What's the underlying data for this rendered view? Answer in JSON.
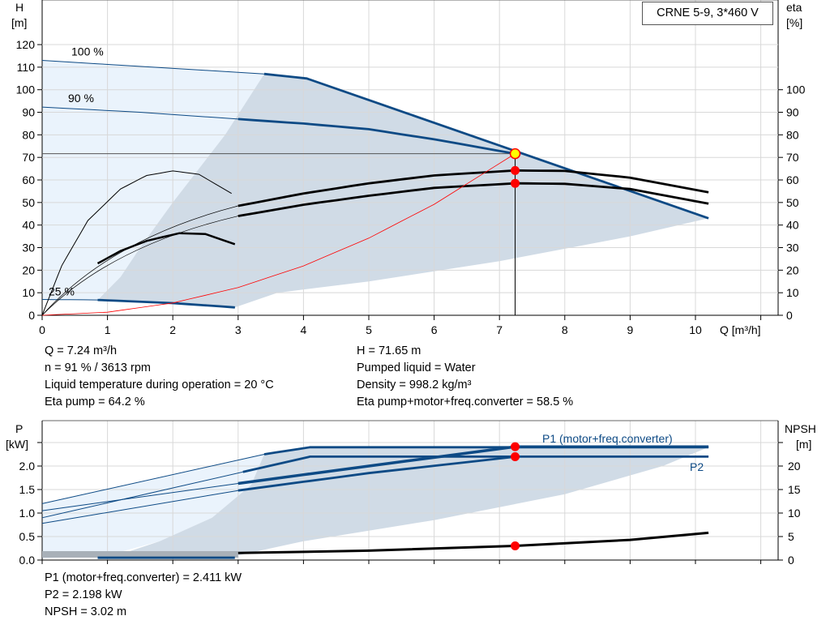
{
  "chart_data": [
    {
      "type": "line",
      "title": "CRNE 5-9, 3*460 V",
      "xlabel": "Q [m³/h]",
      "ylabel": "H [m]",
      "y2label": "eta [%]",
      "xlim": [
        0,
        11
      ],
      "ylim": [
        0,
        140
      ],
      "y2lim": [
        0,
        140
      ],
      "xticks": [
        0,
        1,
        2,
        3,
        4,
        5,
        6,
        7,
        8,
        9,
        10
      ],
      "yticks": [
        0,
        10,
        20,
        30,
        40,
        50,
        60,
        70,
        80,
        90,
        100,
        110,
        120
      ],
      "y2ticks": [
        0,
        10,
        20,
        30,
        40,
        50,
        60,
        70,
        80,
        90,
        100
      ],
      "y_axis_title": "H",
      "y_axis_unit": "[m]",
      "y2_axis_title": "eta",
      "y2_axis_unit": "[%]",
      "grid": true,
      "regions": {
        "light": [
          [
            0,
            113
          ],
          [
            3.4,
            107
          ],
          [
            2.8,
            80
          ],
          [
            2,
            50
          ],
          [
            1.5,
            30
          ],
          [
            1.2,
            17
          ],
          [
            0.85,
            7
          ],
          [
            0,
            7
          ]
        ],
        "dark": [
          [
            3.4,
            107
          ],
          [
            4.05,
            105
          ],
          [
            10.2,
            43
          ],
          [
            9,
            35
          ],
          [
            7,
            24
          ],
          [
            5,
            15
          ],
          [
            3.6,
            10
          ],
          [
            2.95,
            3.5
          ],
          [
            1.7,
            5.7
          ],
          [
            0.85,
            6.8
          ],
          [
            1.2,
            17
          ],
          [
            1.5,
            30
          ],
          [
            2,
            50
          ],
          [
            2.8,
            80
          ]
        ]
      },
      "series": [
        {
          "label": "100 %",
          "role": "head-max",
          "color": "#0d4a85",
          "points": [
            [
              0,
              113
            ],
            [
              3.4,
              107
            ],
            [
              4.05,
              105
            ],
            [
              10.2,
              43
            ]
          ]
        },
        {
          "label": "90 %",
          "role": "head",
          "color": "#0d4a85",
          "points": [
            [
              0,
              92.3
            ],
            [
              1.5,
              90
            ],
            [
              3,
              87
            ],
            [
              4,
              85
            ],
            [
              5,
              82.5
            ],
            [
              6,
              78
            ],
            [
              7.24,
              71.65
            ]
          ]
        },
        {
          "label": "25 %",
          "role": "head-min",
          "color": "#0d4a85",
          "points": [
            [
              0,
              7
            ],
            [
              0.85,
              6.8
            ],
            [
              2,
              5.4
            ],
            [
              2.95,
              3.5
            ]
          ]
        },
        {
          "role": "eta-pump",
          "color": "#000",
          "points": [
            [
              3,
              48.5
            ],
            [
              4,
              54
            ],
            [
              5,
              58.5
            ],
            [
              6,
              62
            ],
            [
              7.24,
              64.2
            ],
            [
              8,
              64
            ],
            [
              9,
              61
            ],
            [
              10.2,
              54.5
            ]
          ]
        },
        {
          "role": "eta-total",
          "color": "#000",
          "points": [
            [
              3,
              44
            ],
            [
              4,
              49
            ],
            [
              5,
              53
            ],
            [
              6,
              56.5
            ],
            [
              7.24,
              58.5
            ],
            [
              8,
              58.3
            ],
            [
              9,
              56
            ],
            [
              10.2,
              49.5
            ]
          ]
        },
        {
          "role": "eta-25-pump",
          "color": "#000",
          "points": [
            [
              0,
              0
            ],
            [
              0.3,
              22
            ],
            [
              0.7,
              42
            ],
            [
              1.2,
              56
            ],
            [
              1.6,
              62
            ],
            [
              2,
              64
            ],
            [
              2.4,
              62.5
            ],
            [
              2.9,
              54
            ]
          ]
        },
        {
          "role": "eta-25-total",
          "color": "#000",
          "points": [
            [
              0.85,
              23
            ],
            [
              1.2,
              28.5
            ],
            [
              1.6,
              33
            ],
            [
              2.1,
              36.4
            ],
            [
              2.5,
              36
            ],
            [
              2.95,
              31.5
            ]
          ]
        },
        {
          "role": "system-curve",
          "color": "#ff0000",
          "points": [
            [
              0,
              0
            ],
            [
              1,
              1.37
            ],
            [
              2,
              5.47
            ],
            [
              3,
              12.3
            ],
            [
              4,
              21.9
            ],
            [
              5,
              34.2
            ],
            [
              6,
              49.2
            ],
            [
              7.24,
              71.65
            ]
          ]
        }
      ],
      "duty_point": {
        "Q": 7.24,
        "H": 71.65,
        "eta_pump": 64.2,
        "eta_total": 58.5
      }
    },
    {
      "type": "line",
      "ylabel": "P [kW]",
      "y2label": "NPSH [m]",
      "y_axis_title": "P",
      "y_axis_unit": "[kW]",
      "y2_axis_title": "NPSH",
      "y2_axis_unit": "[m]",
      "xlim": [
        0,
        11
      ],
      "ylim": [
        0,
        2.95
      ],
      "y2lim": [
        0,
        29.5
      ],
      "yticks": [
        "0.0",
        "0.5",
        "1.0",
        "1.5",
        "2.0"
      ],
      "y2ticks": [
        0,
        5,
        10,
        15,
        20
      ],
      "grid": true,
      "regions": {
        "light": [
          [
            0,
            1.2
          ],
          [
            3.4,
            2.25
          ],
          [
            3.2,
            1.6
          ],
          [
            2.6,
            0.9
          ],
          [
            1.8,
            0.4
          ],
          [
            1,
            0.1
          ],
          [
            0,
            0.03
          ]
        ],
        "dark": [
          [
            3.4,
            2.25
          ],
          [
            4.1,
            2.4
          ],
          [
            10.2,
            2.4
          ],
          [
            9.5,
            2.0
          ],
          [
            8,
            1.4
          ],
          [
            6,
            0.85
          ],
          [
            4,
            0.4
          ],
          [
            3,
            0.1
          ],
          [
            1,
            0.03
          ],
          [
            1.8,
            0.4
          ],
          [
            2.6,
            0.9
          ],
          [
            3.2,
            1.6
          ]
        ]
      },
      "series": [
        {
          "label": "P1 (motor+freq.converter)",
          "role": "p1-max",
          "color": "#0d4a85",
          "points": [
            [
              0,
              1.2
            ],
            [
              3.4,
              2.25
            ],
            [
              4.1,
              2.4
            ],
            [
              10.2,
              2.4
            ]
          ]
        },
        {
          "role": "p1",
          "color": "#0d4a85",
          "points": [
            [
              0,
              1.05
            ],
            [
              3,
              1.63
            ],
            [
              5,
              2.0
            ],
            [
              7.24,
              2.411
            ],
            [
              10.2,
              2.411
            ]
          ]
        },
        {
          "label": "P2",
          "role": "p2-max",
          "color": "#0d4a85",
          "points": [
            [
              0,
              0.9
            ],
            [
              4.1,
              2.2
            ],
            [
              10.2,
              2.2
            ]
          ]
        },
        {
          "role": "p2",
          "color": "#0d4a85",
          "points": [
            [
              0,
              0.78
            ],
            [
              3,
              1.48
            ],
            [
              5,
              1.85
            ],
            [
              7.24,
              2.198
            ]
          ]
        },
        {
          "role": "npsh",
          "axis": "y2",
          "color": "#000",
          "points": [
            [
              3,
              1.5
            ],
            [
              5,
              2.0
            ],
            [
              7.24,
              3.02
            ],
            [
              9,
              4.3
            ],
            [
              10.2,
              5.8
            ]
          ]
        }
      ],
      "duty_point": {
        "Q": 7.24,
        "P1": 2.411,
        "P2": 2.198,
        "NPSH": 3.02
      }
    }
  ],
  "info_top": {
    "left": [
      "Q = 7.24 m³/h",
      "n = 91 % / 3613 rpm",
      "Liquid temperature during operation = 20 °C",
      "Eta pump = 64.2 %"
    ],
    "right": [
      "H = 71.65 m",
      "Pumped liquid = Water",
      "Density = 998.2 kg/m³",
      "Eta pump+motor+freq.converter = 58.5 %"
    ]
  },
  "info_bottom": [
    "P1 (motor+freq.converter) = 2.411 kW",
    "P2 = 2.198 kW",
    "NPSH = 3.02 m"
  ],
  "colors": {
    "curve": "#0d4a85",
    "light_region": "#eaf3fc",
    "dark_region": "#d0dbe6",
    "duty": "#ff0000",
    "duty_point": "#ffff00",
    "grid": "#d8d8d8"
  }
}
